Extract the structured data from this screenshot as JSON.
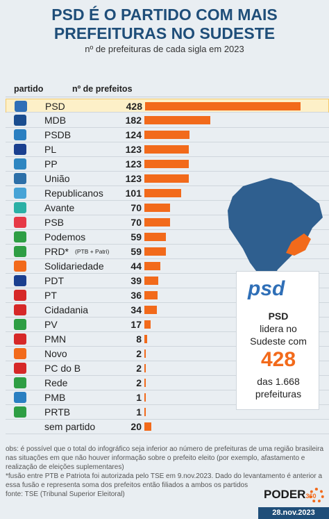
{
  "header": {
    "title_line1": "PSD É O PARTIDO COM MAIS",
    "title_line2": "PREFEITURAS NO SUDESTE",
    "subtitle": "nº de prefeituras de cada sigla em 2023",
    "col_party": "partido",
    "col_count": "nº de prefeitos"
  },
  "chart_data": {
    "type": "bar",
    "title": "PSD É O PARTIDO COM MAIS PREFEITURAS NO SUDESTE",
    "subtitle": "nº de prefeituras de cada sigla em 2023",
    "categories": [
      "PSD",
      "MDB",
      "PSDB",
      "PL",
      "PP",
      "União",
      "Republicanos",
      "Avante",
      "PSB",
      "Podemos",
      "PRD*",
      "Solidariedade",
      "PDT",
      "PT",
      "Cidadania",
      "PV",
      "PMN",
      "Novo",
      "PC do B",
      "Rede",
      "PMB",
      "PRTB",
      "sem partido"
    ],
    "values": [
      428,
      182,
      124,
      123,
      123,
      123,
      101,
      70,
      70,
      59,
      59,
      44,
      39,
      36,
      34,
      17,
      8,
      2,
      2,
      2,
      1,
      1,
      20
    ],
    "category_note": {
      "PRD*": "(PTB + Patri)"
    },
    "highlight": "PSD",
    "bar_color": "#f26a1b",
    "xlim": [
      0,
      428
    ]
  },
  "logos": [
    "#2f6fb7",
    "#1a4d8f",
    "#2a7fc1",
    "#1a3f8f",
    "#2e86c1",
    "#2c6fa8",
    "#46a3d6",
    "#2bb0a5",
    "#e63946",
    "#2e9e44",
    "#2e9e44",
    "#f26a1b",
    "#1a3f8f",
    "#d62828",
    "#d62828",
    "#2e9e44",
    "#d62828",
    "#f26a1b",
    "#d62828",
    "#2e9e44",
    "#2a7fc1",
    "#2e9e44",
    ""
  ],
  "card": {
    "logo": "psd",
    "line1": "PSD",
    "line2": "lidera no",
    "line3": "Sudeste com",
    "number": "428",
    "line4": "das 1.668",
    "line5": "prefeituras",
    "map_base": "#2f5f8f",
    "map_highlight": "#f26a1b"
  },
  "footer": {
    "obs1": "obs: é possível que o total do infográfico seja inferior ao número de prefeituras de uma região brasileira",
    "obs2": "nas situações em que não houver informação sobre o prefeito eleito (por exemplo, afastamento e",
    "obs3": "realização de eleições suplementares)",
    "obs4": "*fusão entre PTB e Patriota foi autorizada pelo TSE em 9.nov.2023. Dado do levantamento é anterior a",
    "obs5": "essa fusão e representa soma dos prefeitos então filiados a ambos os partidos",
    "obs6": "fonte: TSE (Tribunal Superior Eleitoral)",
    "brand": "PODER",
    "brand_sub": "360",
    "date": "28.nov.2023"
  }
}
